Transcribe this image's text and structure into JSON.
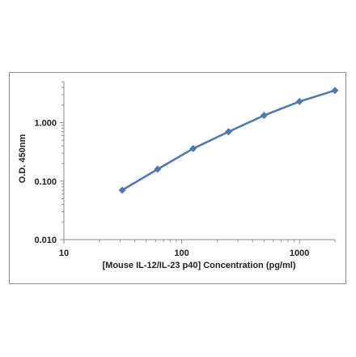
{
  "chart_data": {
    "type": "line",
    "title": "",
    "xlabel": "[Mouse IL-12/IL-23 p40] Concentration (pg/ml)",
    "ylabel": "O.D. 450nm",
    "x_scale": "log",
    "y_scale": "log",
    "xlim": [
      10,
      2000
    ],
    "ylim": [
      0.01,
      5
    ],
    "x_ticks": [
      10,
      100,
      1000
    ],
    "x_tick_labels": [
      "10",
      "100",
      "1000"
    ],
    "y_ticks": [
      0.01,
      0.1,
      1
    ],
    "y_tick_labels": [
      "0.010",
      "0.100",
      "1.000"
    ],
    "grid": false,
    "legend": "none",
    "series": [
      {
        "x": [
          31.25,
          62.5,
          125,
          250,
          500,
          1000,
          2000
        ],
        "y": [
          0.07,
          0.16,
          0.36,
          0.7,
          1.33,
          2.3,
          3.55
        ]
      }
    ],
    "colors": {
      "line": "#4a78b8",
      "marker": "#4a78b8",
      "axis": "#8c8c8c",
      "frame": "#8c8c8c"
    }
  }
}
